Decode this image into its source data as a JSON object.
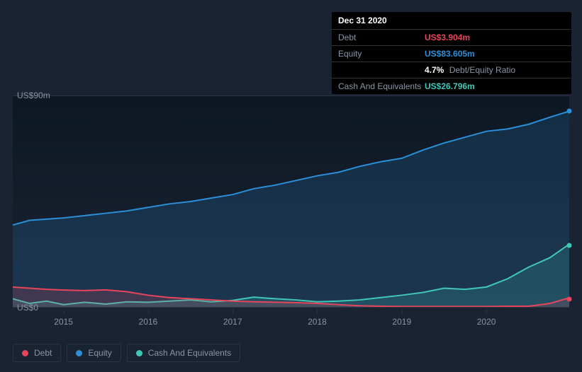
{
  "tooltip": {
    "date": "Dec 31 2020",
    "rows": [
      {
        "label": "Debt",
        "value": "US$3.904m",
        "cls": "debt"
      },
      {
        "label": "Equity",
        "value": "US$83.605m",
        "cls": "equity"
      },
      {
        "label": "",
        "pct": "4.7%",
        "extra": "Debt/Equity Ratio"
      },
      {
        "label": "Cash And Equivalents",
        "value": "US$26.796m",
        "cls": "cash"
      }
    ]
  },
  "chart": {
    "type": "area",
    "background_gradient": [
      "#0d1824",
      "#1a2332"
    ],
    "y_axis": {
      "min": 0,
      "max": 90,
      "ticks": [
        {
          "v": 0,
          "label": "US$0"
        },
        {
          "v": 90,
          "label": "US$90m"
        }
      ]
    },
    "x_axis": {
      "min": 2014.4,
      "max": 2020.98,
      "ticks": [
        2015,
        2016,
        2017,
        2018,
        2019,
        2020
      ]
    },
    "series": [
      {
        "name": "Equity",
        "color": "#2b8fd9",
        "fill_opacity": 0.18,
        "line_width": 2,
        "points": [
          [
            2014.4,
            35
          ],
          [
            2014.6,
            37
          ],
          [
            2014.8,
            37.5
          ],
          [
            2015.0,
            38
          ],
          [
            2015.25,
            39
          ],
          [
            2015.5,
            40
          ],
          [
            2015.75,
            41
          ],
          [
            2016.0,
            42.5
          ],
          [
            2016.25,
            44
          ],
          [
            2016.5,
            45
          ],
          [
            2016.75,
            46.5
          ],
          [
            2017.0,
            48
          ],
          [
            2017.25,
            50.5
          ],
          [
            2017.5,
            52
          ],
          [
            2017.75,
            54
          ],
          [
            2018.0,
            56
          ],
          [
            2018.25,
            57.5
          ],
          [
            2018.5,
            60
          ],
          [
            2018.75,
            62
          ],
          [
            2019.0,
            63.5
          ],
          [
            2019.25,
            67
          ],
          [
            2019.5,
            70
          ],
          [
            2019.75,
            72.5
          ],
          [
            2020.0,
            75
          ],
          [
            2020.25,
            76
          ],
          [
            2020.5,
            78
          ],
          [
            2020.75,
            81
          ],
          [
            2020.98,
            83.6
          ]
        ]
      },
      {
        "name": "Cash And Equivalents",
        "color": "#3fc8b8",
        "fill_opacity": 0.18,
        "line_width": 2,
        "points": [
          [
            2014.4,
            3.5
          ],
          [
            2014.6,
            1.5
          ],
          [
            2014.8,
            2.5
          ],
          [
            2015.0,
            1
          ],
          [
            2015.25,
            2
          ],
          [
            2015.5,
            1.2
          ],
          [
            2015.75,
            2.2
          ],
          [
            2016.0,
            2
          ],
          [
            2016.25,
            2.5
          ],
          [
            2016.5,
            3
          ],
          [
            2016.75,
            2.2
          ],
          [
            2017.0,
            2.8
          ],
          [
            2017.25,
            4.2
          ],
          [
            2017.5,
            3.5
          ],
          [
            2017.75,
            3
          ],
          [
            2018.0,
            2.2
          ],
          [
            2018.25,
            2.5
          ],
          [
            2018.5,
            3
          ],
          [
            2018.75,
            4
          ],
          [
            2019.0,
            5
          ],
          [
            2019.25,
            6.2
          ],
          [
            2019.5,
            8
          ],
          [
            2019.75,
            7.5
          ],
          [
            2020.0,
            8.5
          ],
          [
            2020.25,
            12
          ],
          [
            2020.5,
            17
          ],
          [
            2020.75,
            21
          ],
          [
            2020.98,
            26.8
          ]
        ]
      },
      {
        "name": "Debt",
        "color": "#e8455a",
        "fill_opacity": 0.18,
        "line_width": 2,
        "points": [
          [
            2014.4,
            8.5
          ],
          [
            2014.6,
            8
          ],
          [
            2014.8,
            7.5
          ],
          [
            2015.0,
            7.2
          ],
          [
            2015.25,
            7
          ],
          [
            2015.5,
            7.3
          ],
          [
            2015.75,
            6.5
          ],
          [
            2016.0,
            5
          ],
          [
            2016.25,
            4
          ],
          [
            2016.5,
            3.5
          ],
          [
            2016.75,
            3
          ],
          [
            2017.0,
            2.5
          ],
          [
            2017.25,
            2.2
          ],
          [
            2017.5,
            2
          ],
          [
            2017.75,
            1.8
          ],
          [
            2018.0,
            1.5
          ],
          [
            2018.25,
            1
          ],
          [
            2018.5,
            0.5
          ],
          [
            2018.75,
            0.3
          ],
          [
            2019.0,
            0.2
          ],
          [
            2019.25,
            0.2
          ],
          [
            2019.5,
            0.2
          ],
          [
            2019.75,
            0.2
          ],
          [
            2020.0,
            0.2
          ],
          [
            2020.25,
            0.3
          ],
          [
            2020.5,
            0.3
          ],
          [
            2020.75,
            1.5
          ],
          [
            2020.98,
            3.9
          ]
        ]
      }
    ],
    "end_dots": true
  },
  "legend": [
    {
      "label": "Debt",
      "color": "#e8455a"
    },
    {
      "label": "Equity",
      "color": "#2b8fd9"
    },
    {
      "label": "Cash And Equivalents",
      "color": "#3fc8b8"
    }
  ]
}
